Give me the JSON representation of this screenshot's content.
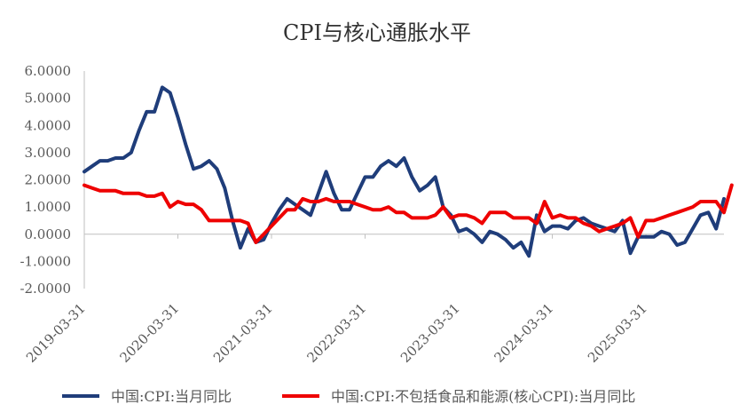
{
  "chart_data": {
    "type": "line",
    "title": "CPI与核心通胀水平",
    "xlabel": "",
    "ylabel": "",
    "ylim": [
      -2,
      6
    ],
    "y_ticks": [
      "6.0000",
      "5.0000",
      "4.0000",
      "3.0000",
      "2.0000",
      "1.0000",
      "0.0000",
      "-1.0000",
      "-2.0000"
    ],
    "x_tick_labels": [
      "2019-03-31",
      "2020-03-31",
      "2021-03-31",
      "2022-03-31",
      "2023-03-31",
      "2024-03-31",
      "2025-03-31"
    ],
    "x_start": "2019-03-31",
    "grid": false,
    "legend_position": "bottom",
    "series": [
      {
        "name": "中国:CPI:当月同比",
        "color": "#1f3d7a",
        "values": [
          2.3,
          2.5,
          2.7,
          2.7,
          2.8,
          2.8,
          3.0,
          3.8,
          4.5,
          4.5,
          5.4,
          5.2,
          4.3,
          3.3,
          2.4,
          2.5,
          2.7,
          2.4,
          1.7,
          0.5,
          -0.5,
          0.2,
          -0.3,
          -0.2,
          0.4,
          0.9,
          1.3,
          1.1,
          0.9,
          0.7,
          1.5,
          2.3,
          1.5,
          0.9,
          0.9,
          1.5,
          2.1,
          2.1,
          2.5,
          2.7,
          2.5,
          2.8,
          2.1,
          1.6,
          1.8,
          2.1,
          1.0,
          0.7,
          0.1,
          0.2,
          0.0,
          -0.3,
          0.1,
          0.0,
          -0.2,
          -0.5,
          -0.3,
          -0.8,
          0.7,
          0.1,
          0.3,
          0.3,
          0.2,
          0.5,
          0.6,
          0.4,
          0.3,
          0.2,
          0.1,
          0.5,
          -0.7,
          -0.1,
          -0.1,
          -0.1,
          0.1,
          0.0,
          -0.4,
          -0.3,
          0.2,
          0.7,
          0.8,
          0.2,
          1.3
        ]
      },
      {
        "name": "中国:CPI:不包括食品和能源(核心CPI):当月同比",
        "color": "#ee0000",
        "values": [
          1.8,
          1.7,
          1.6,
          1.6,
          1.6,
          1.5,
          1.5,
          1.5,
          1.4,
          1.4,
          1.5,
          1.0,
          1.2,
          1.1,
          1.1,
          0.9,
          0.5,
          0.5,
          0.5,
          0.5,
          0.5,
          0.4,
          -0.3,
          0.0,
          0.3,
          0.6,
          0.9,
          0.9,
          1.3,
          1.2,
          1.2,
          1.3,
          1.2,
          1.2,
          1.2,
          1.1,
          1.0,
          0.9,
          0.9,
          1.0,
          0.8,
          0.8,
          0.6,
          0.6,
          0.6,
          0.7,
          1.0,
          0.6,
          0.7,
          0.7,
          0.6,
          0.4,
          0.8,
          0.8,
          0.8,
          0.6,
          0.6,
          0.6,
          0.4,
          1.2,
          0.6,
          0.7,
          0.6,
          0.6,
          0.4,
          0.3,
          0.1,
          0.2,
          0.3,
          0.4,
          0.6,
          -0.1,
          0.5,
          0.5,
          0.6,
          0.7,
          0.8,
          0.9,
          1.0,
          1.2,
          1.2,
          1.2,
          0.8,
          1.8
        ]
      }
    ]
  }
}
